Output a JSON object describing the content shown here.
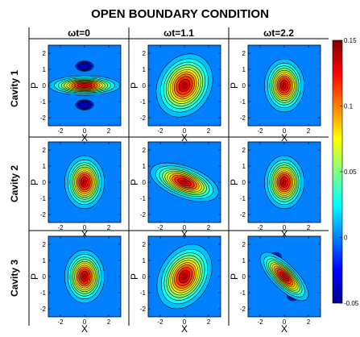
{
  "figure": {
    "title": "OPEN BOUNDARY CONDITION",
    "columns": [
      "ωt=0",
      "ωt=1.1",
      "ωt=2.2"
    ],
    "rows": [
      "Cavity 1",
      "Cavity 2",
      "Cavity 3"
    ],
    "xlabel": "X",
    "ylabel": "P",
    "x_ticks": [
      -2,
      0,
      2
    ],
    "y_ticks": [
      -2,
      -1,
      0,
      1,
      2
    ]
  },
  "colorbar": {
    "ticks": [
      "0.15",
      "0.1",
      "0.05",
      "0",
      "-0.05"
    ],
    "min": -0.05,
    "max": 0.15
  },
  "chart_data": {
    "type": "contour",
    "x_range": [
      -3,
      3
    ],
    "y_range": [
      -2.5,
      2.5
    ],
    "colormap": "jet",
    "value_range": [
      -0.05,
      0.15
    ],
    "panels": [
      {
        "row": "Cavity 1",
        "col": "ωt=0",
        "shape": "squeezed",
        "sx": 1.35,
        "sy": 0.28,
        "angle_deg": 0,
        "negative_lobes": true,
        "lobe_axis": "p"
      },
      {
        "row": "Cavity 1",
        "col": "ωt=1.1",
        "shape": "squeezed",
        "sx": 1.25,
        "sy": 0.75,
        "angle_deg": -60,
        "negative_lobes": false
      },
      {
        "row": "Cavity 1",
        "col": "ωt=2.2",
        "shape": "coherent",
        "sx": 0.75,
        "sy": 0.75,
        "angle_deg": 0,
        "negative_lobes": false
      },
      {
        "row": "Cavity 2",
        "col": "ωt=0",
        "shape": "coherent",
        "sx": 0.75,
        "sy": 0.75,
        "angle_deg": 0,
        "negative_lobes": false
      },
      {
        "row": "Cavity 2",
        "col": "ωt=1.1",
        "shape": "squeezed",
        "sx": 1.35,
        "sy": 0.45,
        "angle_deg": 20,
        "negative_lobes": false
      },
      {
        "row": "Cavity 2",
        "col": "ωt=2.2",
        "shape": "coherent",
        "sx": 0.75,
        "sy": 0.75,
        "angle_deg": 0,
        "negative_lobes": false
      },
      {
        "row": "Cavity 3",
        "col": "ωt=0",
        "shape": "coherent",
        "sx": 0.75,
        "sy": 0.75,
        "angle_deg": 0,
        "negative_lobes": false
      },
      {
        "row": "Cavity 3",
        "col": "ωt=1.1",
        "shape": "squeezed",
        "sx": 1.3,
        "sy": 0.7,
        "angle_deg": -60,
        "negative_lobes": false
      },
      {
        "row": "Cavity 3",
        "col": "ωt=2.2",
        "shape": "squeezed",
        "sx": 1.2,
        "sy": 0.35,
        "angle_deg": 45,
        "negative_lobes": true,
        "lobe_axis": "diag"
      }
    ]
  }
}
